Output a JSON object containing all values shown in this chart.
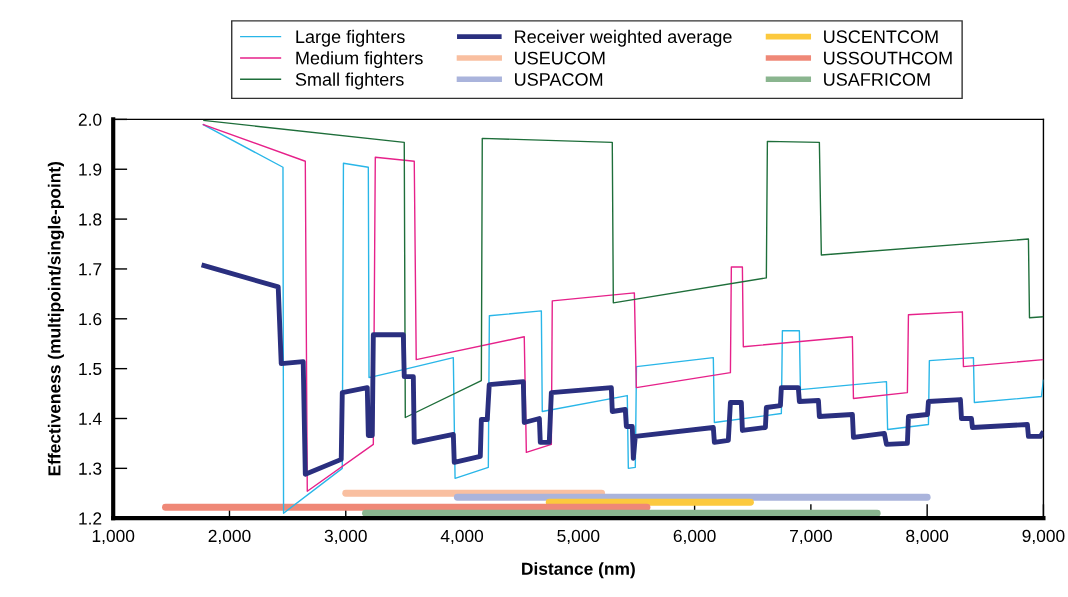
{
  "chart_data": {
    "type": "line",
    "xlabel": "Distance (nm)",
    "ylabel": "Effectiveness (multipoint/single-point)",
    "xlim": [
      1000,
      9000
    ],
    "ylim": [
      1.2,
      2.0
    ],
    "xticks": [
      {
        "value": 1000,
        "label": "1,000"
      },
      {
        "value": 2000,
        "label": "2,000"
      },
      {
        "value": 3000,
        "label": "3,000"
      },
      {
        "value": 4000,
        "label": "4,000"
      },
      {
        "value": 5000,
        "label": "5,000"
      },
      {
        "value": 6000,
        "label": "6,000"
      },
      {
        "value": 7000,
        "label": "7,000"
      },
      {
        "value": 8000,
        "label": "8,000"
      },
      {
        "value": 9000,
        "label": "9,000"
      }
    ],
    "yticks": [
      1.2,
      1.3,
      1.4,
      1.5,
      1.6,
      1.7,
      1.8,
      1.9,
      {
        "value": 2.0,
        "label": "2.0"
      }
    ],
    "grid": false,
    "legend": "top",
    "marker": "none",
    "line_style": "solid",
    "series": [
      {
        "name": "Large fighters",
        "color": "#29b6e8",
        "x": [
          1770,
          2460,
          2465,
          2970,
          2980,
          3194,
          3200,
          3495,
          3925,
          3940,
          4226,
          4235,
          4682,
          4690,
          5421,
          5430,
          5490,
          5500,
          6161,
          6170,
          6746,
          6755,
          6901,
          6910,
          7650,
          7660,
          8011,
          8019,
          8398,
          8406,
          8983,
          9000
        ],
        "values": [
          1.99,
          1.904,
          1.21,
          1.3,
          1.912,
          1.904,
          1.482,
          1.498,
          1.522,
          1.28,
          1.302,
          1.606,
          1.616,
          1.414,
          1.446,
          1.3,
          1.302,
          1.504,
          1.522,
          1.392,
          1.41,
          1.576,
          1.576,
          1.458,
          1.474,
          1.378,
          1.388,
          1.516,
          1.522,
          1.432,
          1.444,
          1.478
        ]
      },
      {
        "name": "Medium fighters",
        "color": "#e6218a",
        "x": [
          1770,
          2652,
          2669,
          3237,
          3254,
          3589,
          3606,
          4535,
          4553,
          4768,
          4776,
          5482,
          5499,
          6308,
          6316,
          6411,
          6419,
          7357,
          7366,
          7830,
          7839,
          8303,
          8312,
          9000
        ],
        "values": [
          1.99,
          1.916,
          1.254,
          1.348,
          1.924,
          1.916,
          1.518,
          1.564,
          1.332,
          1.348,
          1.636,
          1.652,
          1.462,
          1.492,
          1.704,
          1.704,
          1.544,
          1.564,
          1.44,
          1.452,
          1.608,
          1.614,
          1.504,
          1.518
        ]
      },
      {
        "name": "Small fighters",
        "color": "#1e6e3a",
        "x": [
          1774,
          3503,
          3512,
          4166,
          4174,
          5292,
          5301,
          6617,
          6626,
          7073,
          7090,
          8871,
          8880,
          9000
        ],
        "values": [
          1.998,
          1.954,
          1.402,
          1.476,
          1.962,
          1.954,
          1.632,
          1.682,
          1.956,
          1.954,
          1.728,
          1.76,
          1.602,
          1.604
        ]
      },
      {
        "name": "Receiver weighted average",
        "color": "#2a2f7f",
        "x": [
          1760,
          2419,
          2445,
          2634,
          2652,
          2961,
          2970,
          3185,
          3194,
          3228,
          3237,
          3495,
          3503,
          3581,
          3589,
          3925,
          3933,
          4157,
          4166,
          4217,
          4234,
          4527,
          4535,
          4665,
          4673,
          4750,
          4768,
          5284,
          5292,
          5404,
          5413,
          5464,
          5473,
          5490,
          6161,
          6170,
          6290,
          6308,
          6402,
          6411,
          6609,
          6617,
          6738,
          6746,
          6892,
          6901,
          7065,
          7073,
          7357,
          7366,
          7632,
          7650,
          7830,
          7839,
          8003,
          8011,
          8286,
          8295,
          8381,
          8389,
          8862,
          8871,
          8974,
          9000
        ],
        "values": [
          1.708,
          1.664,
          1.51,
          1.514,
          1.288,
          1.318,
          1.452,
          1.462,
          1.366,
          1.366,
          1.568,
          1.568,
          1.484,
          1.484,
          1.352,
          1.368,
          1.312,
          1.324,
          1.398,
          1.398,
          1.468,
          1.474,
          1.392,
          1.4,
          1.352,
          1.352,
          1.452,
          1.462,
          1.414,
          1.418,
          1.384,
          1.384,
          1.32,
          1.364,
          1.382,
          1.352,
          1.356,
          1.432,
          1.432,
          1.376,
          1.382,
          1.422,
          1.426,
          1.462,
          1.462,
          1.434,
          1.436,
          1.404,
          1.408,
          1.362,
          1.37,
          1.348,
          1.35,
          1.404,
          1.408,
          1.434,
          1.438,
          1.4,
          1.4,
          1.382,
          1.388,
          1.364,
          1.364,
          1.374
        ]
      },
      {
        "name": "USEUCOM",
        "color": "#f9bfa0",
        "x": [
          3000,
          5200
        ],
        "values": [
          1.25,
          1.25
        ]
      },
      {
        "name": "USPACOM",
        "color": "#aab4dc",
        "x": [
          3960,
          8000
        ],
        "values": [
          1.242,
          1.242
        ]
      },
      {
        "name": "USCENTCOM",
        "color": "#fcc93e",
        "x": [
          4750,
          6480
        ],
        "values": [
          1.232,
          1.232
        ]
      },
      {
        "name": "USSOUTHCOM",
        "color": "#ef8877",
        "x": [
          1450,
          5590
        ],
        "values": [
          1.222,
          1.222
        ]
      },
      {
        "name": "USAFRICOM",
        "color": "#8ab58f",
        "x": [
          3170,
          7570
        ],
        "values": [
          1.21,
          1.21
        ]
      }
    ]
  }
}
